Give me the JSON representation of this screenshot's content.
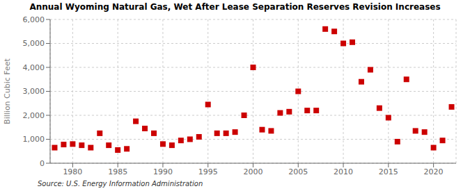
{
  "chart_data": {
    "type": "scatter",
    "title": "Annual Wyoming Natural Gas, Wet After Lease Separation Reserves Revision Increases",
    "ylabel": "Billion Cubic Feet",
    "annotations": [
      "Source: U.S. Energy Information Administration"
    ],
    "x": [
      1978,
      1979,
      1980,
      1981,
      1982,
      1983,
      1984,
      1985,
      1986,
      1987,
      1988,
      1989,
      1990,
      1991,
      1992,
      1993,
      1994,
      1995,
      1996,
      1997,
      1998,
      1999,
      2000,
      2001,
      2002,
      2003,
      2004,
      2005,
      2006,
      2007,
      2008,
      2009,
      2010,
      2011,
      2012,
      2013,
      2014,
      2015,
      2016,
      2017,
      2018,
      2019,
      2020,
      2021,
      2022
    ],
    "values": [
      650,
      780,
      800,
      750,
      650,
      1250,
      750,
      550,
      600,
      1750,
      1450,
      1250,
      800,
      750,
      950,
      1000,
      1100,
      2450,
      1250,
      1250,
      1300,
      2000,
      4000,
      1400,
      1350,
      2100,
      2150,
      3000,
      2200,
      2200,
      5600,
      5500,
      5000,
      5050,
      3400,
      3900,
      2300,
      1900,
      900,
      3500,
      1350,
      1300,
      650,
      950,
      2350
    ],
    "color": "#cc0000",
    "marker": "square",
    "xlim": [
      1977.5,
      2022.5
    ],
    "xticks": [
      1980,
      1985,
      1990,
      1995,
      2000,
      2005,
      2010,
      2015,
      2020
    ],
    "ylim": [
      0,
      6000
    ],
    "yticks": [
      0,
      {
        "value": 1000,
        "label": "1,000"
      },
      {
        "value": 2000,
        "label": "2,000"
      },
      {
        "value": 3000,
        "label": "3,000"
      },
      {
        "value": 4000,
        "label": "4,000"
      },
      {
        "value": 5000,
        "label": "5,000"
      },
      {
        "value": 6000,
        "label": "6,000"
      }
    ],
    "grid": true
  }
}
